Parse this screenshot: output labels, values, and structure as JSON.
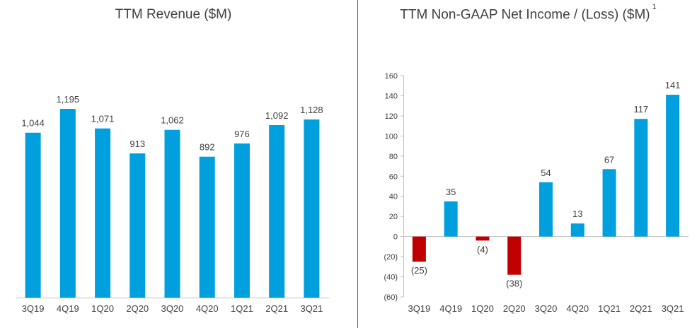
{
  "chart_data": [
    {
      "type": "bar",
      "title": "TTM Revenue ($M)",
      "xlabel": "",
      "ylabel": "",
      "categories": [
        "3Q19",
        "4Q19",
        "1Q20",
        "2Q20",
        "3Q20",
        "4Q20",
        "1Q21",
        "2Q21",
        "3Q21"
      ],
      "values": [
        1044,
        1195,
        1071,
        913,
        1062,
        892,
        976,
        1092,
        1128
      ],
      "labels": [
        "1,044",
        "1,195",
        "1,071",
        "913",
        "1,062",
        "892",
        "976",
        "1,092",
        "1,128"
      ],
      "ylim": [
        0,
        1300
      ],
      "yaxis_shown": false,
      "grid": false,
      "colors": [
        "#00A0DF"
      ]
    },
    {
      "type": "bar",
      "title": "TTM Non-GAAP Net Income / (Loss) ($M)",
      "title_footnote": "1",
      "xlabel": "",
      "ylabel": "",
      "categories": [
        "3Q19",
        "4Q19",
        "1Q20",
        "2Q20",
        "3Q20",
        "4Q20",
        "1Q21",
        "2Q21",
        "3Q21"
      ],
      "values": [
        -25,
        35,
        -4,
        -38,
        54,
        13,
        67,
        117,
        141
      ],
      "labels": [
        "(25)",
        "35",
        "(4)",
        "(38)",
        "54",
        "13",
        "67",
        "117",
        "141"
      ],
      "ylim": [
        -60,
        160
      ],
      "yticks": [
        160,
        140,
        120,
        100,
        80,
        60,
        40,
        20,
        0,
        -20,
        -40,
        -60
      ],
      "ytick_labels": [
        "160",
        "140",
        "120",
        "100",
        "80",
        "60",
        "40",
        "20",
        "0",
        "(20)",
        "(40)",
        "(60)"
      ],
      "grid": false,
      "colors": [
        "#00A0DF",
        "#C00000"
      ]
    }
  ]
}
